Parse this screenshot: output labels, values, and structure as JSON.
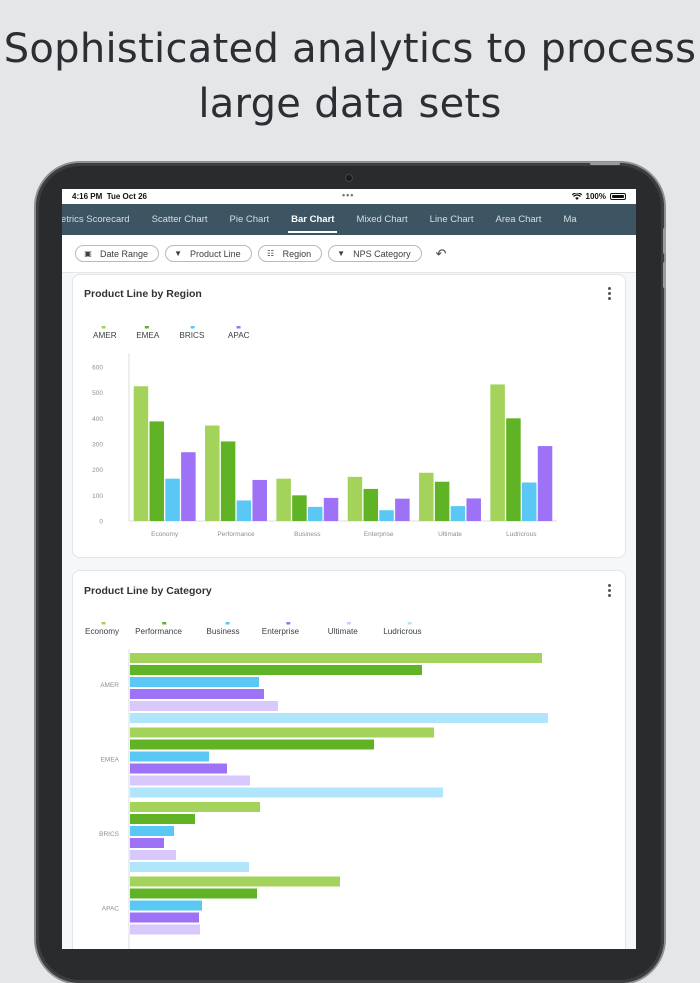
{
  "headline": {
    "line1": "Sophisticated analytics to process",
    "line2": "large data sets"
  },
  "status_bar": {
    "time": "4:16 PM",
    "date": "Tue Oct 26",
    "battery": "100%"
  },
  "tabs": [
    {
      "label": "Metrics Scorecard",
      "active": false
    },
    {
      "label": "Scatter Chart",
      "active": false
    },
    {
      "label": "Pie Chart",
      "active": false
    },
    {
      "label": "Bar Chart",
      "active": true
    },
    {
      "label": "Mixed Chart",
      "active": false
    },
    {
      "label": "Line Chart",
      "active": false
    },
    {
      "label": "Area Chart",
      "active": false
    },
    {
      "label": "Ma",
      "active": false
    }
  ],
  "filters": [
    {
      "label": "Date Range",
      "icon": "calendar-icon"
    },
    {
      "label": "Product Line",
      "icon": "filter-icon"
    },
    {
      "label": "Region",
      "icon": "hierarchy-icon"
    },
    {
      "label": "NPS Category",
      "icon": "filter-icon"
    }
  ],
  "chart_data": [
    {
      "type": "bar",
      "title": "Product Line by Region",
      "categories": [
        "Economy",
        "Performance",
        "Business",
        "Enterprise",
        "Ultimate",
        "Ludricrous"
      ],
      "series": [
        {
          "name": "AMER",
          "color": "#a3d35a",
          "values": [
            525,
            372,
            165,
            172,
            188,
            532
          ]
        },
        {
          "name": "EMEA",
          "color": "#5fb324",
          "values": [
            388,
            310,
            100,
            125,
            153,
            400
          ]
        },
        {
          "name": "BRICS",
          "color": "#5bc7f5",
          "values": [
            165,
            80,
            55,
            42,
            58,
            150
          ]
        },
        {
          "name": "APAC",
          "color": "#9d72f6",
          "values": [
            268,
            160,
            90,
            87,
            88,
            292
          ]
        }
      ],
      "yticks": [
        "600",
        "500",
        "400",
        "300",
        "200",
        "100",
        "0"
      ],
      "ylim": [
        0,
        600
      ],
      "legend": "top-left"
    },
    {
      "type": "bar",
      "orientation": "horizontal",
      "title": "Product Line by Category",
      "categories": [
        "AMER",
        "EMEA",
        "BRICS",
        "APAC"
      ],
      "series": [
        {
          "name": "Economy",
          "color": "#a3d35a",
          "values": [
            412,
            304,
            130,
            210
          ]
        },
        {
          "name": "Performance",
          "color": "#5fb324",
          "values": [
            292,
            244,
            65,
            127
          ]
        },
        {
          "name": "Business",
          "color": "#5bc7f5",
          "values": [
            129,
            79,
            44,
            72
          ]
        },
        {
          "name": "Enterprise",
          "color": "#9d72f6",
          "values": [
            134,
            97,
            34,
            69
          ]
        },
        {
          "name": "Ultimate",
          "color": "#d8c8fb",
          "values": [
            148,
            120,
            46,
            70
          ]
        },
        {
          "name": "Ludricrous",
          "color": "#b0e5fc",
          "values": [
            418,
            313,
            119,
            0
          ]
        }
      ],
      "xlim": [
        0,
        420
      ],
      "legend": "top-left"
    }
  ]
}
